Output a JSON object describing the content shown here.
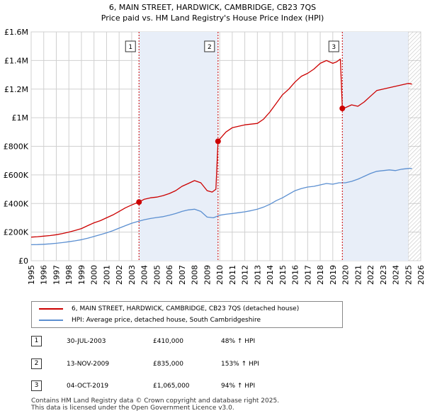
{
  "chart_data": {
    "type": "line",
    "title": "6, MAIN STREET, HARDWICK, CAMBRIDGE, CB23 7QS",
    "subtitle": "Price paid vs. HM Land Registry's House Price Index (HPI)",
    "xlim": [
      1995,
      2026
    ],
    "ylim": [
      0,
      1600000
    ],
    "x_ticks": [
      1995,
      1996,
      1997,
      1998,
      1999,
      2000,
      2001,
      2002,
      2003,
      2004,
      2005,
      2006,
      2007,
      2008,
      2009,
      2010,
      2011,
      2012,
      2013,
      2014,
      2015,
      2016,
      2017,
      2018,
      2019,
      2020,
      2021,
      2022,
      2023,
      2024,
      2025,
      2026
    ],
    "y_ticks": [
      {
        "value": 0,
        "label": "£0"
      },
      {
        "value": 200000,
        "label": "£200K"
      },
      {
        "value": 400000,
        "label": "£400K"
      },
      {
        "value": 600000,
        "label": "£600K"
      },
      {
        "value": 800000,
        "label": "£800K"
      },
      {
        "value": 1000000,
        "label": "£1M"
      },
      {
        "value": 1200000,
        "label": "£1.2M"
      },
      {
        "value": 1400000,
        "label": "£1.4M"
      },
      {
        "value": 1600000,
        "label": "£1.6M"
      }
    ],
    "grid": true,
    "forecast_start": 2025.0,
    "colors": {
      "property": "#cc0000",
      "hpi": "#5b8fd1",
      "shade": "#e8eef8",
      "grid": "#d0d0d0",
      "marker_line": "#cc0000"
    },
    "series": [
      {
        "name": "6, MAIN STREET, HARDWICK, CAMBRIDGE, CB23 7QS (detached house)",
        "color": "#cc0000",
        "x": [
          1995.0,
          1995.5,
          1996.0,
          1996.5,
          1997.0,
          1997.5,
          1998.0,
          1998.5,
          1999.0,
          1999.5,
          2000.0,
          2000.5,
          2001.0,
          2001.5,
          2002.0,
          2002.5,
          2003.0,
          2003.58,
          2004.0,
          2004.5,
          2005.0,
          2005.5,
          2006.0,
          2006.5,
          2007.0,
          2007.5,
          2008.0,
          2008.5,
          2009.0,
          2009.4,
          2009.7,
          2009.87,
          2010.0,
          2010.5,
          2011.0,
          2011.5,
          2012.0,
          2012.5,
          2013.0,
          2013.5,
          2014.0,
          2014.5,
          2015.0,
          2015.5,
          2016.0,
          2016.5,
          2017.0,
          2017.5,
          2018.0,
          2018.5,
          2019.0,
          2019.3,
          2019.6,
          2019.76,
          2020.0,
          2020.5,
          2021.0,
          2021.5,
          2022.0,
          2022.5,
          2023.0,
          2023.5,
          2024.0,
          2024.5,
          2025.0,
          2025.3
        ],
        "values": [
          165000,
          168000,
          172000,
          176000,
          182000,
          190000,
          200000,
          212000,
          225000,
          245000,
          265000,
          280000,
          300000,
          320000,
          345000,
          370000,
          390000,
          410000,
          430000,
          440000,
          445000,
          455000,
          470000,
          490000,
          520000,
          540000,
          560000,
          545000,
          490000,
          480000,
          500000,
          835000,
          850000,
          900000,
          930000,
          940000,
          950000,
          955000,
          960000,
          990000,
          1040000,
          1100000,
          1160000,
          1200000,
          1250000,
          1290000,
          1310000,
          1340000,
          1380000,
          1400000,
          1380000,
          1390000,
          1410000,
          1065000,
          1070000,
          1090000,
          1080000,
          1110000,
          1150000,
          1190000,
          1200000,
          1210000,
          1220000,
          1230000,
          1240000,
          1235000
        ]
      },
      {
        "name": "HPI: Average price, detached house, South Cambridgeshire",
        "color": "#5b8fd1",
        "x": [
          1995.0,
          1995.5,
          1996.0,
          1996.5,
          1997.0,
          1997.5,
          1998.0,
          1998.5,
          1999.0,
          1999.5,
          2000.0,
          2000.5,
          2001.0,
          2001.5,
          2002.0,
          2002.5,
          2003.0,
          2003.5,
          2004.0,
          2004.5,
          2005.0,
          2005.5,
          2006.0,
          2006.5,
          2007.0,
          2007.5,
          2008.0,
          2008.5,
          2009.0,
          2009.5,
          2010.0,
          2010.5,
          2011.0,
          2011.5,
          2012.0,
          2012.5,
          2013.0,
          2013.5,
          2014.0,
          2014.5,
          2015.0,
          2015.5,
          2016.0,
          2016.5,
          2017.0,
          2017.5,
          2018.0,
          2018.5,
          2019.0,
          2019.5,
          2020.0,
          2020.5,
          2021.0,
          2021.5,
          2022.0,
          2022.5,
          2023.0,
          2023.5,
          2024.0,
          2024.5,
          2025.0,
          2025.3
        ],
        "values": [
          112000,
          113000,
          115000,
          118000,
          122000,
          127000,
          133000,
          139000,
          147000,
          157000,
          170000,
          182000,
          195000,
          210000,
          228000,
          245000,
          262000,
          275000,
          287000,
          295000,
          302000,
          308000,
          318000,
          330000,
          345000,
          355000,
          360000,
          345000,
          305000,
          300000,
          318000,
          325000,
          330000,
          336000,
          342000,
          350000,
          360000,
          375000,
          395000,
          420000,
          440000,
          465000,
          490000,
          505000,
          515000,
          520000,
          530000,
          540000,
          535000,
          545000,
          545000,
          555000,
          570000,
          590000,
          610000,
          625000,
          630000,
          635000,
          630000,
          640000,
          645000,
          645000
        ]
      }
    ],
    "sales": [
      {
        "id": "1",
        "x": 2003.58,
        "value": 410000
      },
      {
        "id": "2",
        "x": 2009.87,
        "value": 835000
      },
      {
        "id": "3",
        "x": 2019.76,
        "value": 1065000
      }
    ]
  },
  "legend": {
    "property_label": "6, MAIN STREET, HARDWICK, CAMBRIDGE, CB23 7QS (detached house)",
    "hpi_label": "HPI: Average price, detached house, South Cambridgeshire"
  },
  "sales_table": [
    {
      "num": "1",
      "date": "30-JUL-2003",
      "price": "£410,000",
      "hpi": "48% ↑ HPI"
    },
    {
      "num": "2",
      "date": "13-NOV-2009",
      "price": "£835,000",
      "hpi": "153% ↑ HPI"
    },
    {
      "num": "3",
      "date": "04-OCT-2019",
      "price": "£1,065,000",
      "hpi": "94% ↑ HPI"
    }
  ],
  "footer": {
    "line1": "Contains HM Land Registry data © Crown copyright and database right 2025.",
    "line2": "This data is licensed under the Open Government Licence v3.0."
  }
}
